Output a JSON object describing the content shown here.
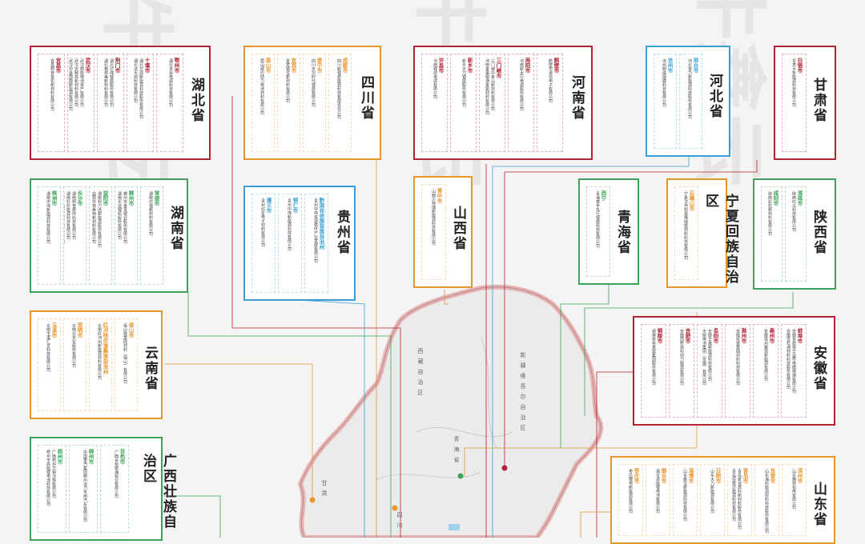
{
  "watermark": "牛鑫云",
  "colors": {
    "red": "#b22234",
    "orange": "#e8952c",
    "blue": "#3aa0d4",
    "green": "#3aa55a",
    "purple": "#8a5ad1"
  },
  "provinces": [
    {
      "name": "湖北省",
      "color": "#b22234",
      "cities": [
        {
          "name": "鄂州市",
          "lines": [
            "·湖北京谷电源科技有限公司"
          ]
        },
        {
          "name": "十堰市",
          "lines": [
            "·湖北万润新能源科技股份有限公司",
            "·湖北远大高科技有限公司"
          ]
        },
        {
          "name": "荆门市",
          "lines": [
            "·湖北亿纬锂能股份有限公司",
            "·湖北格林美新材料有限公司"
          ]
        },
        {
          "name": "武汉市",
          "lines": [
            "·武汉蔚能电池资产有限公司",
            "·武汉天赐高新材料有限公司",
            "·武汉中金国能新能源有限公司"
          ]
        },
        {
          "name": "宜昌市",
          "lines": [
            "·宜昌邦普宜化新材料有限公司"
          ]
        }
      ]
    },
    {
      "name": "四川省",
      "color": "#e8952c",
      "cities": [
        {
          "name": "成都市",
          "lines": [
            "·四川新锂想能源科技有限责任公司"
          ]
        },
        {
          "name": "遂宁市",
          "lines": [
            "·四川天华时代锂能有限公司"
          ]
        },
        {
          "name": "宜宾市",
          "lines": [
            "·宜宾锂宝新材料有限公司"
          ]
        },
        {
          "name": "眉山市",
          "lines": [
            "·眉山顺应动力电池材料有限公司"
          ]
        }
      ]
    },
    {
      "name": "河南省",
      "color": "#b22234",
      "cities": [
        {
          "name": "鹤壁市",
          "lines": [
            "·鹤壁市诺信电子有限公司"
          ]
        },
        {
          "name": "南阳市",
          "lines": [
            "·河南新太行电源股份有限公司"
          ]
        },
        {
          "name": "三门峡市",
          "lines": [
            "·三门峡中条山新材料有限公司",
            "·河南金渠银通金属材料有限公司"
          ]
        },
        {
          "name": "新乡市",
          "lines": [
            "·新乡天力锂能股份有限公司"
          ]
        },
        {
          "name": "许昌市",
          "lines": [
            "·河南锂动电源有限公司"
          ]
        }
      ]
    },
    {
      "name": "河北省",
      "color": "#3aa0d4",
      "cities": [
        {
          "name": "邢台市",
          "lines": [
            "·河北金力新能源科技股份有限公司"
          ]
        },
        {
          "name": "沧州市",
          "lines": [
            "·沧州明珠隔膜科技有限公司"
          ]
        }
      ]
    },
    {
      "name": "甘肃省",
      "color": "#b22234",
      "cities": [
        {
          "name": "白银市",
          "lines": [
            "·甘肃大象能源科技有限公司"
          ]
        }
      ]
    },
    {
      "name": "湖南省",
      "color": "#3aa55a",
      "cities": [
        {
          "name": "常德市",
          "lines": [
            "·湖南中锂新材料有限公司"
          ]
        },
        {
          "name": "郴州市",
          "lines": [
            "·郴州市金贵银业股份有限公司",
            "·湖南长远锂科股份有限公司"
          ]
        },
        {
          "name": "益阳市",
          "lines": [
            "·湖南科力远新能源股份有限公司",
            "·益阳市菲美特新材料有限公司"
          ]
        },
        {
          "name": "长沙市",
          "lines": [
            "·湖南邦普循环科技有限公司",
            "·湖南杉杉能源科技有限公司",
            "·长沙矿冶研究院有限责任公司"
          ]
        },
        {
          "name": "株洲市",
          "lines": [
            "·湖南中伟新能源科技有限公司"
          ]
        }
      ]
    },
    {
      "name": "贵州省",
      "color": "#3aa0d4",
      "cities": [
        {
          "name": "黔南布依族苗族自治州",
          "lines": [
            "·贵州中伟资源循环产业发展有限公司"
          ]
        },
        {
          "name": "铜仁市",
          "lines": [
            "·贵州中伟新能源科技有限公司"
          ]
        },
        {
          "name": "遵义市",
          "lines": [
            "·贵州红星电子材料有限公司"
          ]
        }
      ]
    },
    {
      "name": "山西省",
      "color": "#e8952c",
      "cities": [
        {
          "name": "晋中市",
          "lines": [
            "·山西贝特瑞新能源科技有限公司"
          ]
        }
      ]
    },
    {
      "name": "青海省",
      "color": "#3aa55a",
      "cities": [
        {
          "name": "西宁",
          "lines": [
            "·青海泰丰先行锂能科技有限公司"
          ]
        }
      ]
    },
    {
      "name": "宁夏回族自治区",
      "color": "#e8952c",
      "cities": [
        {
          "name": "石嘴山市",
          "lines": [
            "·宁夏汉尧石墨烯储能材料科技有限公司"
          ]
        }
      ]
    },
    {
      "name": "陕西省",
      "color": "#3aa55a",
      "cities": [
        {
          "name": "渭南市",
          "lines": [
            "·陕西红马科技有限公司"
          ]
        },
        {
          "name": "咸阳市",
          "lines": [
            "·陕西彩虹新材料有限公司"
          ]
        }
      ]
    },
    {
      "name": "云南省",
      "color": "#e8952c",
      "cities": [
        {
          "name": "保山市",
          "lines": [
            "·保山隆基硅材料（保山）有限公司"
          ]
        },
        {
          "name": "红河哈尼族彝族自治州",
          "lines": [
            "·云南红河州新能源材料有限公司"
          ]
        },
        {
          "name": "昆明市",
          "lines": [
            "·云南云天化股份有限公司"
          ]
        },
        {
          "name": "玉溪市",
          "lines": [
            "·云南玉溪汇龙科技有限公司"
          ]
        }
      ]
    },
    {
      "name": "安徽省",
      "color": "#b22234",
      "cities": [
        {
          "name": "蚌埠市",
          "lines": [
            "·安徽省蚌埠华益导电膜玻璃有限公司",
            "·安徽壹石通材料科技股份有限公司"
          ]
        },
        {
          "name": "亳州市",
          "lines": [
            "·安徽亳州聚源新能源有限公司"
          ]
        },
        {
          "name": "滁州市",
          "lines": [
            "·安徽凯盛基础材料科技有限公司"
          ]
        },
        {
          "name": "阜阳市",
          "lines": [
            "·安徽华鑫新能源科技有限公司",
            "·天能电池集团（安徽）有限公司"
          ]
        },
        {
          "name": "合肥市",
          "lines": [
            "·安徽国轩高科动力能源有限公司"
          ]
        },
        {
          "name": "铜陵市",
          "lines": [
            "·铜陵有色金属集团股份有限公司"
          ]
        }
      ]
    },
    {
      "name": "广西壮族自治区",
      "color": "#3aa55a",
      "cities": [
        {
          "name": "百色市",
          "lines": [
            "·广西百色银海铝业有限公司"
          ]
        },
        {
          "name": "柳州市",
          "lines": [
            "·中国重汽集团柳州运力专用汽车有限公司"
          ]
        },
        {
          "name": "梧州市",
          "lines": [
            "·广西梧州华锡冶炼有限公司",
            "·梧州市高能锂电池科技有限公司"
          ]
        }
      ]
    },
    {
      "name": "山东省",
      "color": "#e8952c",
      "cities": [
        {
          "name": "滨州市",
          "lines": [
            "·山东魏桥铝电有限公司"
          ]
        },
        {
          "name": "东营市",
          "lines": [
            "·山东海科新源材料科技股份有限公司"
          ]
        },
        {
          "name": "青岛市",
          "lines": [
            "·青岛乾运高科新材料股份有限公司",
            "·青岛恒能达能源科技有限公司"
          ]
        },
        {
          "name": "日照市",
          "lines": [
            "·山东大力新能源有限公司"
          ]
        },
        {
          "name": "淄博市",
          "lines": [
            "·山东鑫宝新能源科技有限公司"
          ]
        },
        {
          "name": "烟台市",
          "lines": [
            "·烟台卓能锂电池有限公司"
          ]
        },
        {
          "name": "枣庄市",
          "lines": [
            "·枣庄锂电新能源有限公司"
          ]
        }
      ]
    }
  ],
  "map_labels": [
    "新疆维吾尔自治区",
    "西藏自治区",
    "青海省",
    "四川",
    "甘肃"
  ]
}
